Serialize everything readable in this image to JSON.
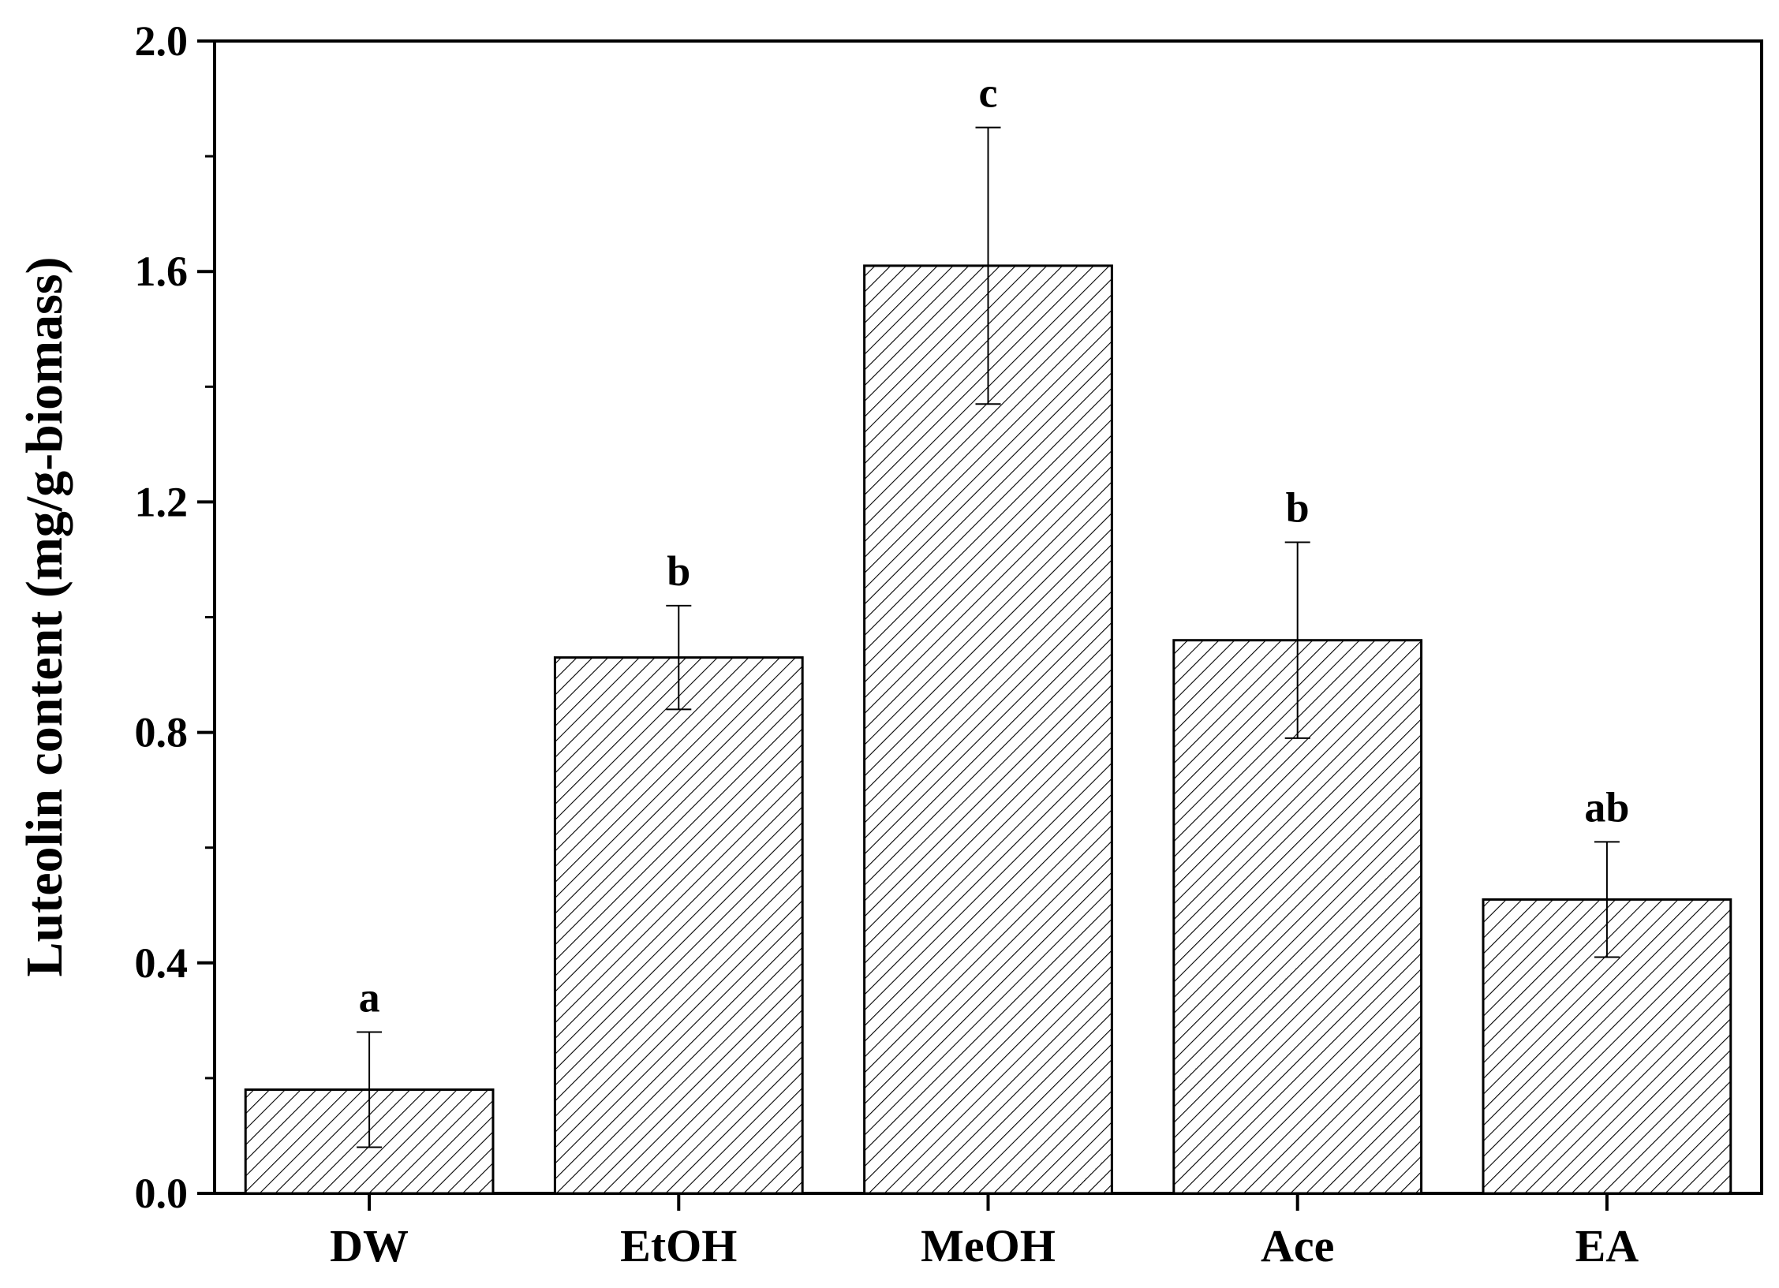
{
  "chart_data": {
    "type": "bar",
    "title": "",
    "xlabel": "",
    "ylabel": "Luteolin content (mg/g-biomass)",
    "ylim": [
      0,
      2.0
    ],
    "yticks": [
      "0.0",
      "0.4",
      "0.8",
      "1.2",
      "1.6",
      "2.0"
    ],
    "categories": [
      "DW",
      "EtOH",
      "MeOH",
      "Ace",
      "EA"
    ],
    "values": [
      0.18,
      0.93,
      1.61,
      0.96,
      0.51
    ],
    "errors": [
      0.1,
      0.09,
      0.24,
      0.17,
      0.1
    ],
    "significance": [
      "a",
      "b",
      "c",
      "b",
      "ab"
    ],
    "pattern": "diagonal-hatch",
    "grid": false,
    "legend": "none"
  }
}
